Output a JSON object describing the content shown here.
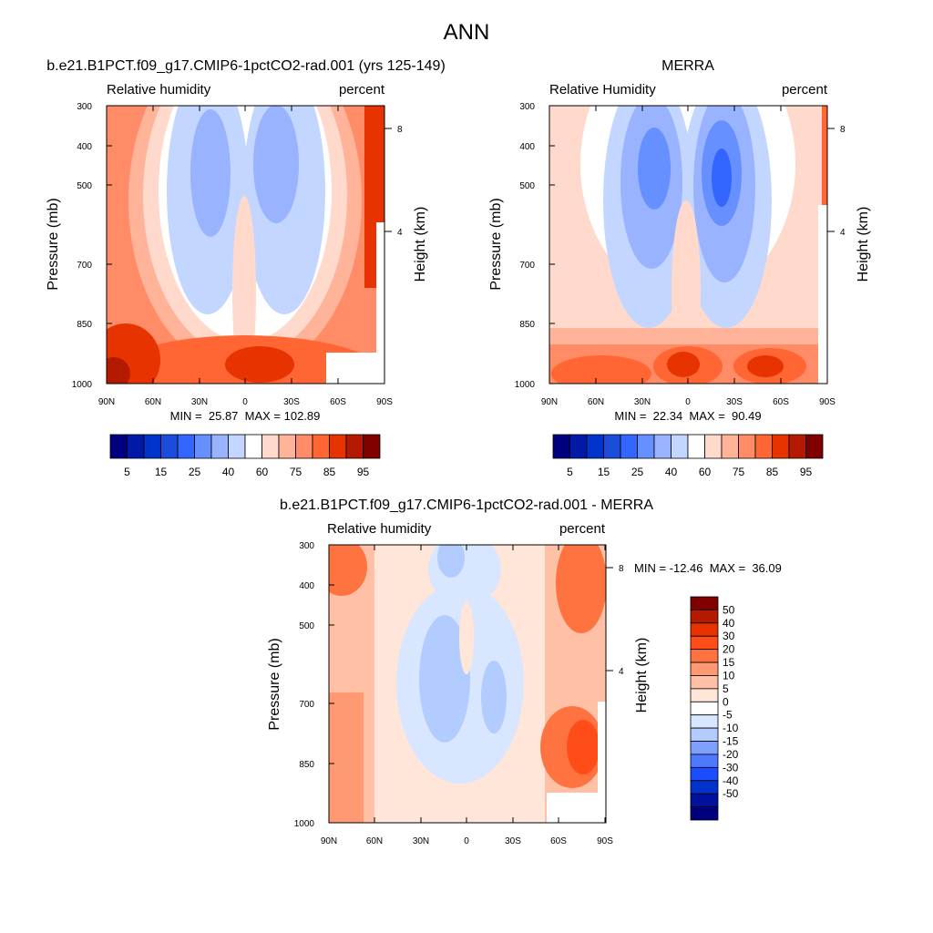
{
  "page_title": "ANN",
  "chart_data": [
    {
      "type": "heatmap",
      "kind": "filled-contour",
      "title": "b.e21.B1PCT.f09_g17.CMIP6-1pctCO2-rad.001 (yrs 125-149)",
      "left_subtitle": "Relative humidity",
      "right_subtitle": "percent",
      "ylabel": "Pressure (mb)",
      "right_ylabel": "Height (km)",
      "xticks": [
        "90N",
        "60N",
        "30N",
        "0",
        "30S",
        "60S",
        "90S"
      ],
      "yticks": [
        "300",
        "400",
        "500",
        "700",
        "850",
        "1000"
      ],
      "right_yticks": [
        "8",
        "4"
      ],
      "x_range": [
        90,
        -90
      ],
      "y_range_mb": [
        300,
        1000
      ],
      "stats": "MIN =  25.87  MAX = 102.89",
      "min": 25.87,
      "max": 102.89,
      "colorbar": {
        "orientation": "horizontal",
        "levels": [
          5,
          10,
          15,
          20,
          25,
          30,
          40,
          50,
          60,
          70,
          75,
          80,
          85,
          90,
          95
        ],
        "labels": [
          "5",
          "15",
          "25",
          "40",
          "60",
          "75",
          "85",
          "95"
        ],
        "colors": [
          "#00007f",
          "#0019a6",
          "#0033cc",
          "#1a4ddb",
          "#3366ff",
          "#6690ff",
          "#99b3ff",
          "#c2d6ff",
          "#ffffff",
          "#ffd9cc",
          "#ffb399",
          "#ff8c66",
          "#ff6633",
          "#e63300",
          "#b31a00",
          "#800000"
        ]
      }
    },
    {
      "type": "heatmap",
      "kind": "filled-contour",
      "title": "MERRA",
      "left_subtitle": "Relative Humidity",
      "right_subtitle": "percent",
      "ylabel": "Pressure (mb)",
      "right_ylabel": "Height (km)",
      "xticks": [
        "90N",
        "60N",
        "30N",
        "0",
        "30S",
        "60S",
        "90S"
      ],
      "yticks": [
        "300",
        "400",
        "500",
        "700",
        "850",
        "1000"
      ],
      "right_yticks": [
        "8",
        "4"
      ],
      "x_range": [
        90,
        -90
      ],
      "y_range_mb": [
        300,
        1000
      ],
      "stats": "MIN =  22.34  MAX =  90.49",
      "min": 22.34,
      "max": 90.49,
      "colorbar": {
        "orientation": "horizontal",
        "levels": [
          5,
          10,
          15,
          20,
          25,
          30,
          40,
          50,
          60,
          70,
          75,
          80,
          85,
          90,
          95
        ],
        "labels": [
          "5",
          "15",
          "25",
          "40",
          "60",
          "75",
          "85",
          "95"
        ],
        "colors": [
          "#00007f",
          "#0019a6",
          "#0033cc",
          "#1a4ddb",
          "#3366ff",
          "#6690ff",
          "#99b3ff",
          "#c2d6ff",
          "#ffffff",
          "#ffd9cc",
          "#ffb399",
          "#ff8c66",
          "#ff6633",
          "#e63300",
          "#b31a00",
          "#800000"
        ]
      }
    },
    {
      "type": "heatmap",
      "kind": "filled-contour-difference",
      "title": "b.e21.B1PCT.f09_g17.CMIP6-1pctCO2-rad.001 - MERRA",
      "left_subtitle": "Relative humidity",
      "right_subtitle": "percent",
      "ylabel": "Pressure (mb)",
      "right_ylabel": "Height (km)",
      "xticks": [
        "90N",
        "60N",
        "30N",
        "0",
        "30S",
        "60S",
        "90S"
      ],
      "yticks": [
        "300",
        "400",
        "500",
        "700",
        "850",
        "1000"
      ],
      "right_yticks": [
        "8",
        "4"
      ],
      "x_range": [
        90,
        -90
      ],
      "y_range_mb": [
        300,
        1000
      ],
      "stats": "MIN = -12.46  MAX =  36.09",
      "min": -12.46,
      "max": 36.09,
      "colorbar": {
        "orientation": "vertical",
        "labels": [
          "50",
          "40",
          "30",
          "20",
          "15",
          "10",
          "5",
          "0",
          "-5",
          "-10",
          "-15",
          "-20",
          "-30",
          "-40",
          "-50"
        ],
        "colors": [
          "#800000",
          "#b31a00",
          "#e63300",
          "#ff4d1a",
          "#ff7340",
          "#ff9973",
          "#ffc0a6",
          "#ffe6d9",
          "#ffffff",
          "#d9e6ff",
          "#b3ccff",
          "#809fff",
          "#4d79ff",
          "#1a4dff",
          "#0033cc",
          "#00109f",
          "#00007f"
        ]
      }
    }
  ]
}
